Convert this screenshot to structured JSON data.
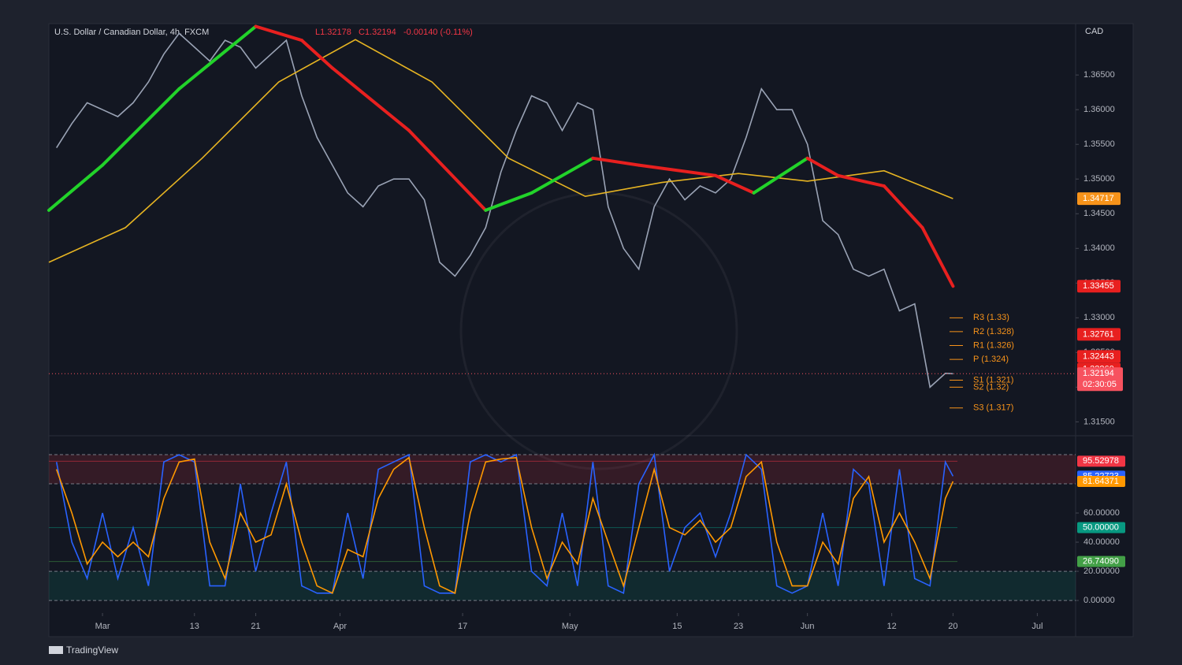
{
  "header": {
    "symbol": "U.S. Dollar / Canadian Dollar, 4h, FXCM",
    "low": "L1.32178",
    "close": "C1.32194",
    "change": "-0.00140 (-0.11%)"
  },
  "currency": "CAD",
  "brand": "TradingView",
  "chart_data": [
    {
      "type": "line",
      "xlim": [
        53,
        187
      ],
      "ylim": [
        1.313,
        1.3724
      ],
      "yticks": [
        {
          "value": 1.315,
          "label": "1.31500"
        },
        {
          "value": 1.32,
          "label": "1.32000"
        },
        {
          "value": 1.325,
          "label": "1.32500"
        },
        {
          "value": 1.33,
          "label": "1.33000"
        },
        {
          "value": 1.335,
          "label": "1.33500"
        },
        {
          "value": 1.34,
          "label": "1.34000"
        },
        {
          "value": 1.345,
          "label": "1.34500"
        },
        {
          "value": 1.35,
          "label": "1.35000"
        },
        {
          "value": 1.355,
          "label": "1.35500"
        },
        {
          "value": 1.36,
          "label": "1.36000"
        },
        {
          "value": 1.365,
          "label": "1.36500"
        }
      ],
      "series": [
        {
          "color": "#9aa3b5",
          "x": [
            54,
            56,
            58,
            60,
            62,
            64,
            66,
            68,
            70,
            72,
            74,
            76,
            78,
            80,
            82,
            84,
            86,
            88,
            90,
            92,
            94,
            96,
            98,
            100,
            102,
            104,
            106,
            108,
            110,
            112,
            114,
            116,
            118,
            120,
            122,
            124,
            126,
            128,
            130,
            132,
            134,
            136,
            138,
            140,
            142,
            144,
            146,
            148,
            150,
            152,
            154,
            156,
            158,
            160,
            162,
            164,
            166,
            168,
            170,
            171
          ],
          "values": [
            1.3545,
            1.358,
            1.361,
            1.36,
            1.359,
            1.361,
            1.364,
            1.368,
            1.371,
            1.369,
            1.367,
            1.37,
            1.369,
            1.366,
            1.368,
            1.37,
            1.362,
            1.356,
            1.352,
            1.348,
            1.346,
            1.349,
            1.35,
            1.35,
            1.347,
            1.338,
            1.336,
            1.339,
            1.343,
            1.351,
            1.357,
            1.362,
            1.361,
            1.357,
            1.361,
            1.36,
            1.346,
            1.34,
            1.337,
            1.346,
            1.35,
            1.347,
            1.349,
            1.348,
            1.35,
            1.356,
            1.363,
            1.36,
            1.36,
            1.355,
            1.344,
            1.342,
            1.337,
            1.336,
            1.337,
            1.331,
            1.332,
            1.32,
            1.322,
            1.32194
          ]
        },
        {
          "color": "#e6b422",
          "x": [
            53,
            63,
            73,
            83,
            93,
            103,
            113,
            123,
            133,
            143,
            152,
            162,
            171
          ],
          "values": [
            1.338,
            1.343,
            1.353,
            1.364,
            1.3701,
            1.364,
            1.353,
            1.3475,
            1.3495,
            1.3508,
            1.3497,
            1.3512,
            1.34717
          ]
        },
        {
          "up_color": "#22d32a",
          "down_color": "#e8201f",
          "x": [
            53,
            60,
            70,
            80,
            86,
            90,
            100,
            110,
            116,
            124,
            130,
            140,
            145,
            152,
            156,
            162,
            167,
            171
          ],
          "values": [
            1.3455,
            1.352,
            1.363,
            1.372,
            1.37,
            1.366,
            1.357,
            1.3455,
            1.348,
            1.353,
            1.352,
            1.3505,
            1.348,
            1.353,
            1.3505,
            1.349,
            1.343,
            1.33455
          ]
        }
      ],
      "price_labels": [
        {
          "value": 1.34717,
          "label": "1.34717",
          "color": "#f7931a"
        },
        {
          "value": 1.33455,
          "label": "1.33455",
          "color": "#e8201f"
        },
        {
          "value": 1.32761,
          "label": "1.32761",
          "color": "#e8201f"
        },
        {
          "value": 1.32443,
          "label": "1.32443",
          "color": "#e8201f"
        },
        {
          "value": 1.3226,
          "label": "1.32260",
          "color": "#e8201f"
        },
        {
          "value": 1.32194,
          "label": "1.32194",
          "color": "#f7525f"
        }
      ],
      "timer": "02:30:05",
      "pivots": [
        {
          "value": 1.33,
          "label": "R3 (1.33)"
        },
        {
          "value": 1.328,
          "label": "R2 (1.328)"
        },
        {
          "value": 1.326,
          "label": "R1 (1.326)"
        },
        {
          "value": 1.324,
          "label": "P (1.324)"
        },
        {
          "value": 1.321,
          "label": "S1 (1.321)"
        },
        {
          "value": 1.32,
          "label": "S2 (1.32)"
        },
        {
          "value": 1.317,
          "label": "S3 (1.317)"
        }
      ],
      "pivot_color": "#f7931a"
    },
    {
      "type": "line",
      "xlim": [
        53,
        187
      ],
      "ylim": [
        -8.6,
        113
      ],
      "yticks": [
        {
          "value": 0,
          "label": "0.00000"
        },
        {
          "value": 20,
          "label": "20.00000"
        },
        {
          "value": 40,
          "label": "40.00000"
        },
        {
          "value": 60,
          "label": "60.00000"
        }
      ],
      "xticks": [
        {
          "value": 60,
          "label": "Mar"
        },
        {
          "value": 72,
          "label": "13"
        },
        {
          "value": 80,
          "label": "21"
        },
        {
          "value": 91,
          "label": "Apr"
        },
        {
          "value": 107,
          "label": "17"
        },
        {
          "value": 121,
          "label": "May"
        },
        {
          "value": 135,
          "label": "15"
        },
        {
          "value": 143,
          "label": "23"
        },
        {
          "value": 152,
          "label": "Jun"
        },
        {
          "value": 163,
          "label": "12"
        },
        {
          "value": 171,
          "label": "20"
        },
        {
          "value": 182,
          "label": "Jul"
        }
      ],
      "bands": [
        {
          "from": 80,
          "to": 100,
          "color": "#f23645"
        },
        {
          "from": 0,
          "to": 20,
          "color": "#089981"
        }
      ],
      "levels": [
        {
          "value": 95.52978,
          "label": "95.52978",
          "color": "#f23645"
        },
        {
          "value": 50,
          "label": "50.00000",
          "color": "#089981"
        },
        {
          "value": 26.7409,
          "label": "26.74090",
          "color": "#43a047"
        }
      ],
      "x": [
        54,
        56,
        58,
        60,
        62,
        64,
        66,
        68,
        70,
        72,
        74,
        76,
        78,
        80,
        82,
        84,
        86,
        88,
        90,
        92,
        94,
        96,
        98,
        100,
        102,
        104,
        106,
        108,
        110,
        112,
        114,
        116,
        118,
        120,
        122,
        124,
        126,
        128,
        130,
        132,
        134,
        136,
        138,
        140,
        142,
        144,
        146,
        148,
        150,
        152,
        154,
        156,
        158,
        160,
        162,
        164,
        166,
        168,
        170,
        171
      ],
      "series": [
        {
          "color": "#2962ff",
          "values": [
            95,
            40,
            15,
            60,
            15,
            50,
            10,
            95,
            100,
            95,
            10,
            10,
            80,
            20,
            60,
            95,
            10,
            5,
            5,
            60,
            15,
            90,
            95,
            100,
            10,
            5,
            5,
            95,
            100,
            95,
            100,
            20,
            10,
            60,
            10,
            95,
            10,
            5,
            80,
            100,
            20,
            50,
            60,
            30,
            60,
            100,
            90,
            10,
            5,
            10,
            60,
            10,
            90,
            80,
            10,
            90,
            15,
            10,
            95,
            85.22723
          ]
        },
        {
          "color": "#ff9800",
          "values": [
            90,
            60,
            25,
            40,
            30,
            40,
            30,
            70,
            95,
            97,
            40,
            15,
            60,
            40,
            45,
            80,
            40,
            10,
            5,
            35,
            30,
            70,
            90,
            98,
            50,
            10,
            5,
            60,
            95,
            97,
            98,
            50,
            15,
            40,
            25,
            70,
            40,
            10,
            50,
            90,
            50,
            45,
            55,
            40,
            50,
            85,
            95,
            40,
            10,
            10,
            40,
            25,
            70,
            85,
            40,
            60,
            40,
            15,
            70,
            81.64371
          ]
        }
      ]
    }
  ]
}
